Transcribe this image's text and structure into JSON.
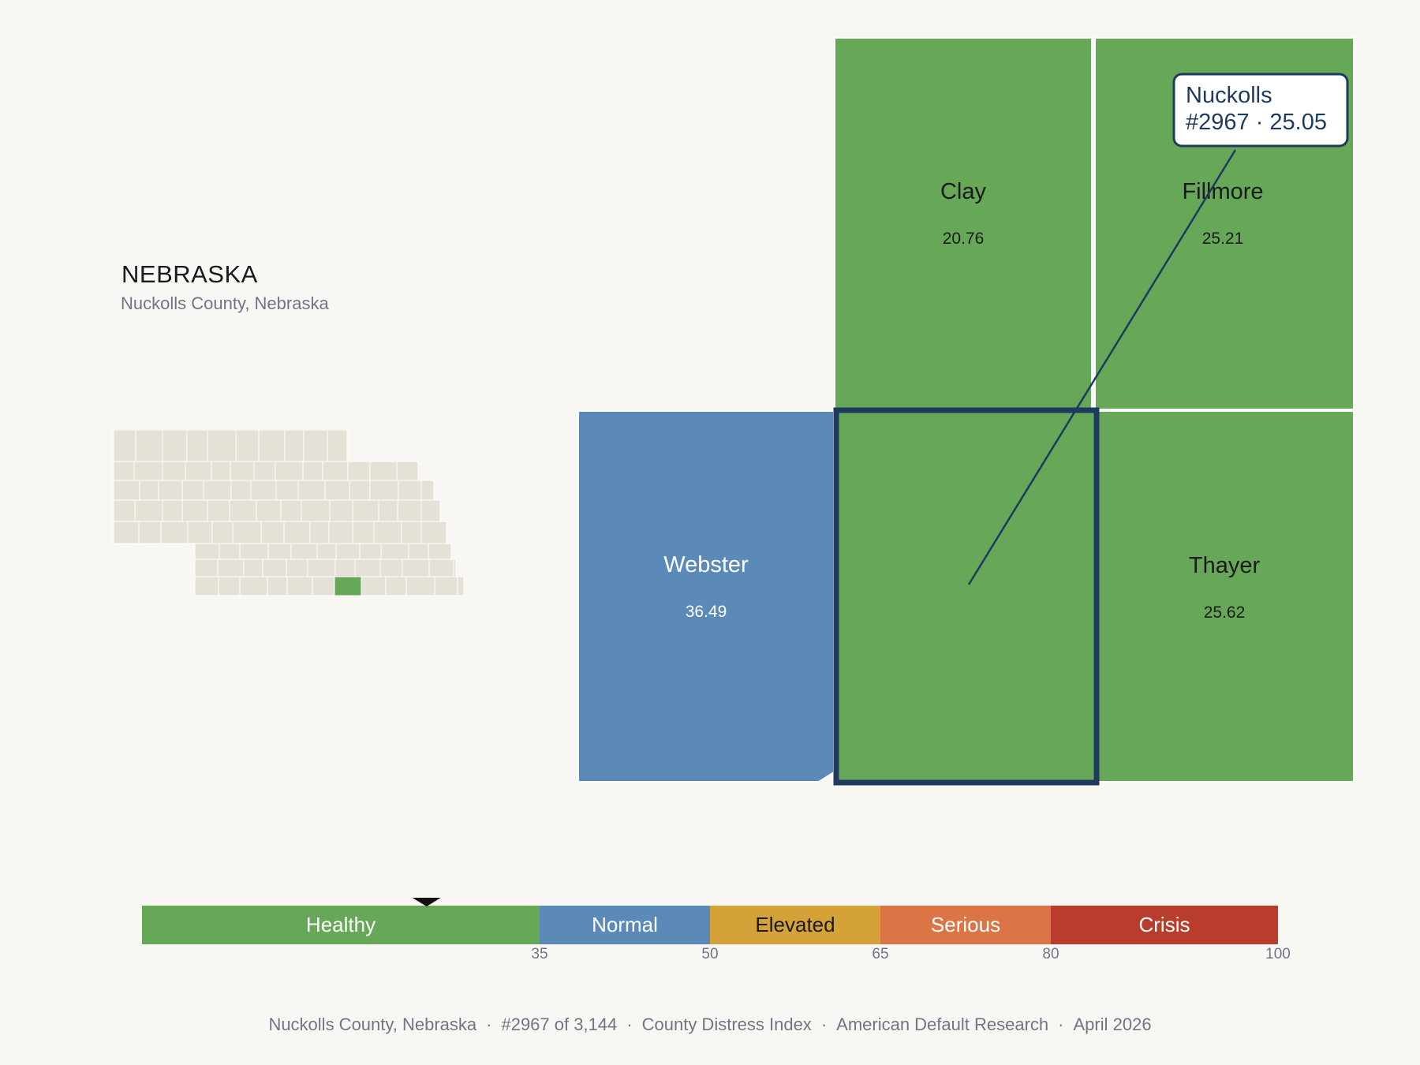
{
  "state": {
    "title": "NEBRASKA",
    "subtitle": "Nuckolls County, Nebraska",
    "highlight_color": "#67a758",
    "base_color": "#e6e1d6"
  },
  "counties": [
    {
      "name": "Clay",
      "value": "20.76",
      "color": "#67a758",
      "text_color": "#1a1a1a"
    },
    {
      "name": "Fillmore",
      "value": "25.21",
      "color": "#67a758",
      "text_color": "#1a1a1a"
    },
    {
      "name": "Webster",
      "value": "36.49",
      "color": "#5b8ab8",
      "text_color": "#ffffff"
    },
    {
      "name": "Nuckolls",
      "value": "25.05",
      "color": "#67a758",
      "text_color": "#1a1a1a",
      "selected": true
    },
    {
      "name": "Thayer",
      "value": "25.62",
      "color": "#67a758",
      "text_color": "#1a1a1a"
    }
  ],
  "callout": {
    "line1": "Nuckolls",
    "line2": "#2967 · 25.05"
  },
  "scale": {
    "min": 0,
    "max": 100,
    "marker_value": 25.05,
    "bands": [
      {
        "label": "Healthy",
        "from": 0,
        "to": 35,
        "color": "#67a758",
        "text_color": "#ffffff"
      },
      {
        "label": "Normal",
        "from": 35,
        "to": 50,
        "color": "#5b8ab8",
        "text_color": "#ffffff"
      },
      {
        "label": "Elevated",
        "from": 50,
        "to": 65,
        "color": "#d4a238",
        "text_color": "#1a1a1a"
      },
      {
        "label": "Serious",
        "from": 65,
        "to": 80,
        "color": "#dc7546",
        "text_color": "#ffffff"
      },
      {
        "label": "Crisis",
        "from": 80,
        "to": 100,
        "color": "#b93d2c",
        "text_color": "#ffffff"
      }
    ],
    "ticks": [
      "35",
      "50",
      "65",
      "80",
      "100"
    ]
  },
  "footer": {
    "county": "Nuckolls County, Nebraska",
    "rank": "#2967 of 3,144",
    "index": "County Distress Index",
    "source": "American Default Research",
    "date": "April 2026"
  }
}
